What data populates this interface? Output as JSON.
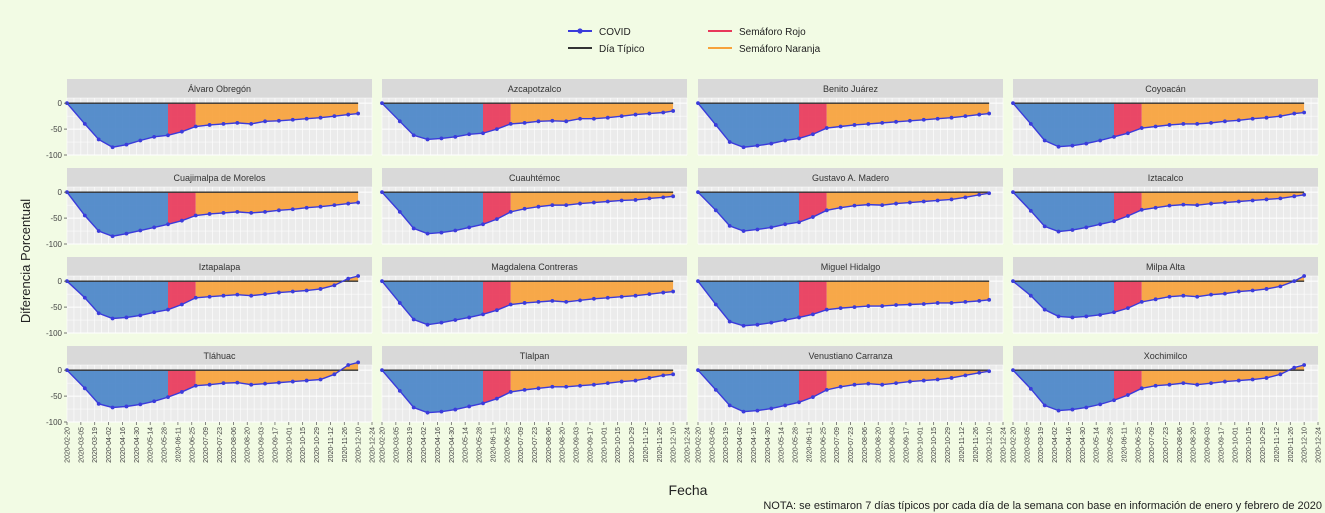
{
  "figure": {
    "ylabel": "Diferencia Porcentual",
    "xlabel": "Fecha",
    "note": "NOTA: se estimaron 7 días típicos por cada día de la semana con base en información de enero y febrero de 2020"
  },
  "legend": {
    "items": [
      {
        "label": "COVID",
        "color": "#3b3bdb",
        "kind": "line-point"
      },
      {
        "label": "Día Típico",
        "color": "#333333",
        "kind": "line"
      },
      {
        "label": "Semáforo Rojo",
        "color": "#e8385a",
        "kind": "line"
      },
      {
        "label": "Semáforo Naranja",
        "color": "#f7a23b",
        "kind": "line"
      }
    ]
  },
  "colors": {
    "covid": "#3b3bdb",
    "tipico": "#333333",
    "rojo": "#e8385a",
    "naranja": "#f7a23b",
    "azul_area": "#4a86c8",
    "panel_bg": "#ebebeb",
    "strip_bg": "#d9d9d9",
    "grid": "#ffffff"
  },
  "chart_data": {
    "type": "line",
    "ylim": [
      -100,
      10
    ],
    "y_ticks": [
      0,
      -50,
      -100
    ],
    "y_tick_labels": [
      "0",
      "-50",
      "-100"
    ],
    "x_tick_labels": [
      "2020-02-20",
      "2020-03-05",
      "2020-03-19",
      "2020-04-02",
      "2020-04-16",
      "2020-04-30",
      "2020-05-14",
      "2020-05-28",
      "2020-06-11",
      "2020-06-25",
      "2020-07-09",
      "2020-07-23",
      "2020-08-06",
      "2020-08-20",
      "2020-09-03",
      "2020-09-17",
      "2020-10-01",
      "2020-10-15",
      "2020-10-29",
      "2020-11-12",
      "2020-11-26",
      "2020-12-10",
      "2020-12-24"
    ],
    "x_dates": [
      "2020-02-20",
      "2020-03-09",
      "2020-03-23",
      "2020-04-06",
      "2020-04-20",
      "2020-05-04",
      "2020-05-18",
      "2020-06-01",
      "2020-06-15",
      "2020-06-29",
      "2020-07-13",
      "2020-07-27",
      "2020-08-10",
      "2020-08-24",
      "2020-09-07",
      "2020-09-21",
      "2020-10-05",
      "2020-10-19",
      "2020-11-02",
      "2020-11-16",
      "2020-11-30",
      "2020-12-10"
    ],
    "semaforo_rojo": {
      "start": "2020-06-01",
      "end": "2020-06-29"
    },
    "semaforo_naranja": {
      "start": "2020-06-29",
      "end": "2020-12-10"
    },
    "tipico_value": 0,
    "panels": [
      {
        "name": "Álvaro Obregón",
        "values": [
          0,
          -40,
          -70,
          -85,
          -80,
          -72,
          -65,
          -62,
          -55,
          -45,
          -42,
          -40,
          -38,
          -40,
          -35,
          -34,
          -32,
          -30,
          -28,
          -25,
          -22,
          -20
        ]
      },
      {
        "name": "Azcapotzalco",
        "values": [
          0,
          -35,
          -62,
          -70,
          -68,
          -65,
          -60,
          -58,
          -50,
          -40,
          -38,
          -35,
          -34,
          -35,
          -30,
          -30,
          -28,
          -25,
          -22,
          -20,
          -18,
          -15
        ]
      },
      {
        "name": "Benito Juárez",
        "values": [
          0,
          -42,
          -75,
          -85,
          -82,
          -78,
          -72,
          -68,
          -60,
          -48,
          -45,
          -42,
          -40,
          -38,
          -36,
          -34,
          -32,
          -30,
          -28,
          -25,
          -22,
          -20
        ]
      },
      {
        "name": "Coyoacán",
        "values": [
          0,
          -40,
          -72,
          -84,
          -82,
          -78,
          -72,
          -65,
          -58,
          -48,
          -45,
          -42,
          -40,
          -40,
          -38,
          -35,
          -33,
          -30,
          -28,
          -25,
          -20,
          -18
        ]
      },
      {
        "name": "Cuajimalpa de Morelos",
        "values": [
          0,
          -45,
          -75,
          -85,
          -80,
          -74,
          -68,
          -62,
          -55,
          -45,
          -42,
          -40,
          -38,
          -40,
          -38,
          -35,
          -33,
          -30,
          -28,
          -25,
          -22,
          -20
        ]
      },
      {
        "name": "Cuauhtémoc",
        "values": [
          0,
          -38,
          -70,
          -80,
          -78,
          -74,
          -68,
          -62,
          -52,
          -38,
          -32,
          -28,
          -25,
          -25,
          -22,
          -20,
          -18,
          -16,
          -15,
          -12,
          -10,
          -8
        ]
      },
      {
        "name": "Gustavo A. Madero",
        "values": [
          0,
          -35,
          -65,
          -75,
          -72,
          -68,
          -62,
          -58,
          -48,
          -35,
          -30,
          -26,
          -24,
          -25,
          -22,
          -20,
          -18,
          -16,
          -14,
          -10,
          -5,
          -2
        ]
      },
      {
        "name": "Iztacalco",
        "values": [
          0,
          -36,
          -66,
          -76,
          -73,
          -68,
          -62,
          -56,
          -46,
          -34,
          -30,
          -26,
          -24,
          -25,
          -22,
          -20,
          -18,
          -16,
          -14,
          -12,
          -8,
          -5
        ]
      },
      {
        "name": "Iztapalapa",
        "values": [
          0,
          -32,
          -62,
          -72,
          -70,
          -66,
          -60,
          -55,
          -45,
          -32,
          -30,
          -28,
          -26,
          -28,
          -25,
          -22,
          -20,
          -18,
          -15,
          -8,
          5,
          10
        ]
      },
      {
        "name": "Magdalena Contreras",
        "values": [
          0,
          -42,
          -74,
          -84,
          -80,
          -75,
          -70,
          -64,
          -56,
          -45,
          -42,
          -40,
          -38,
          -40,
          -37,
          -34,
          -32,
          -30,
          -28,
          -25,
          -22,
          -20
        ]
      },
      {
        "name": "Miguel Hidalgo",
        "values": [
          0,
          -45,
          -78,
          -86,
          -84,
          -80,
          -75,
          -70,
          -64,
          -55,
          -52,
          -50,
          -48,
          -48,
          -46,
          -45,
          -44,
          -42,
          -42,
          -40,
          -38,
          -36
        ]
      },
      {
        "name": "Milpa Alta",
        "values": [
          0,
          -28,
          -55,
          -68,
          -70,
          -68,
          -65,
          -60,
          -52,
          -40,
          -35,
          -30,
          -28,
          -30,
          -26,
          -24,
          -20,
          -18,
          -15,
          -10,
          0,
          10
        ]
      },
      {
        "name": "Tláhuac",
        "values": [
          0,
          -35,
          -65,
          -72,
          -70,
          -66,
          -60,
          -52,
          -42,
          -30,
          -28,
          -25,
          -24,
          -28,
          -26,
          -24,
          -22,
          -20,
          -18,
          -8,
          10,
          15
        ]
      },
      {
        "name": "Tlalpan",
        "values": [
          0,
          -40,
          -72,
          -82,
          -80,
          -76,
          -70,
          -64,
          -55,
          -42,
          -38,
          -35,
          -32,
          -32,
          -30,
          -28,
          -25,
          -22,
          -20,
          -15,
          -10,
          -8
        ]
      },
      {
        "name": "Venustiano Carranza",
        "values": [
          0,
          -38,
          -68,
          -80,
          -78,
          -74,
          -68,
          -62,
          -52,
          -38,
          -32,
          -28,
          -26,
          -28,
          -25,
          -22,
          -20,
          -18,
          -15,
          -10,
          -5,
          -2
        ]
      },
      {
        "name": "Xochimilco",
        "values": [
          0,
          -36,
          -68,
          -78,
          -76,
          -72,
          -66,
          -58,
          -48,
          -35,
          -30,
          -28,
          -25,
          -28,
          -25,
          -22,
          -20,
          -18,
          -15,
          -8,
          5,
          10
        ]
      }
    ]
  }
}
